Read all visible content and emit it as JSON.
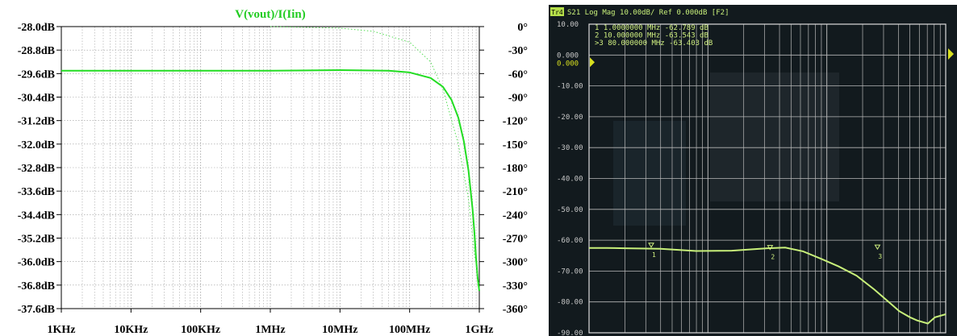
{
  "chart_data": [
    {
      "type": "line",
      "title": "V(vout)/I(Iin)",
      "xlabel": "",
      "ylabel": "",
      "x_scale": "log",
      "x_ticks": [
        "1KHz",
        "10KHz",
        "100KHz",
        "1MHz",
        "10MHz",
        "100MHz",
        "1GHz"
      ],
      "xlim_hz": [
        1000,
        1000000000
      ],
      "y_left_ticks": [
        "-28.0dB",
        "-28.8dB",
        "-29.6dB",
        "-30.4dB",
        "-31.2dB",
        "-32.0dB",
        "-32.8dB",
        "-33.6dB",
        "-34.4dB",
        "-35.2dB",
        "-36.0dB",
        "-36.8dB",
        "-37.6dB"
      ],
      "ylim_db": [
        -37.6,
        -28.0
      ],
      "y_right_ticks": [
        "0°",
        "-30°",
        "-60°",
        "-90°",
        "-120°",
        "-150°",
        "-180°",
        "-210°",
        "-240°",
        "-270°",
        "-300°",
        "-330°",
        "-360°"
      ],
      "ylim_deg": [
        -360,
        0
      ],
      "grid": true,
      "series": [
        {
          "kind": "magnitude",
          "style": "solid",
          "color": "#22dd22",
          "x": [
            1000,
            10000,
            100000,
            1000000,
            10000000,
            50000000,
            100000000,
            200000000,
            300000000,
            400000000,
            500000000,
            600000000,
            700000000,
            800000000,
            850000000,
            900000000,
            950000000,
            1000000000
          ],
          "values": [
            -29.5,
            -29.5,
            -29.5,
            -29.5,
            -29.48,
            -29.5,
            -29.56,
            -29.75,
            -30.05,
            -30.5,
            -31.1,
            -31.9,
            -32.9,
            -34.2,
            -35.0,
            -35.9,
            -36.6,
            -37.0
          ]
        },
        {
          "kind": "phase",
          "style": "dotted",
          "color": "#55dd55",
          "x": [
            1000000,
            10000000,
            30000000,
            100000000,
            200000000,
            300000000,
            500000000,
            700000000,
            850000000,
            1000000000
          ],
          "values": [
            0,
            -2,
            -6,
            -20,
            -45,
            -80,
            -150,
            -220,
            -290,
            -330
          ]
        }
      ]
    },
    {
      "type": "line",
      "header": "S21 Log Mag 10.00dB/ Ref 0.000dB [F2]",
      "trace_badge": "Tr4",
      "ref_label": "0.000",
      "y_ticks": [
        "10.00",
        "0.000",
        "-10.00",
        "-20.00",
        "-30.00",
        "-40.00",
        "-50.00",
        "-60.00",
        "-70.00",
        "-80.00",
        "-90.00"
      ],
      "ylim_db": [
        -90,
        10
      ],
      "grid": true,
      "markers": [
        {
          "id": "1",
          "label": "1   1.0000000 MHz  -62.789 dB",
          "freq_mhz": 1,
          "value": -62.789
        },
        {
          "id": "2",
          "label": "2   10.000000 MHz  -63.543 dB",
          "freq_mhz": 10,
          "value": -63.543
        },
        {
          "id": ">3",
          "label": ">3  80.000000 MHz  -63.403 dB",
          "freq_mhz": 80,
          "value": -63.403
        }
      ],
      "series": [
        {
          "color": "#c8f07a",
          "x_frac": [
            0.0,
            0.05,
            0.1,
            0.2,
            0.3,
            0.4,
            0.5,
            0.55,
            0.6,
            0.65,
            0.7,
            0.75,
            0.8,
            0.82,
            0.85,
            0.87,
            0.9,
            0.92,
            0.95,
            0.97,
            1.0
          ],
          "values": [
            -62.5,
            -62.5,
            -62.6,
            -62.8,
            -63.5,
            -63.4,
            -62.6,
            -62.4,
            -63.6,
            -66.0,
            -68.5,
            -71.5,
            -76.0,
            -78.0,
            -81.0,
            -83.0,
            -85.0,
            -86.0,
            -87.0,
            -85.0,
            -84.0
          ]
        }
      ]
    }
  ]
}
